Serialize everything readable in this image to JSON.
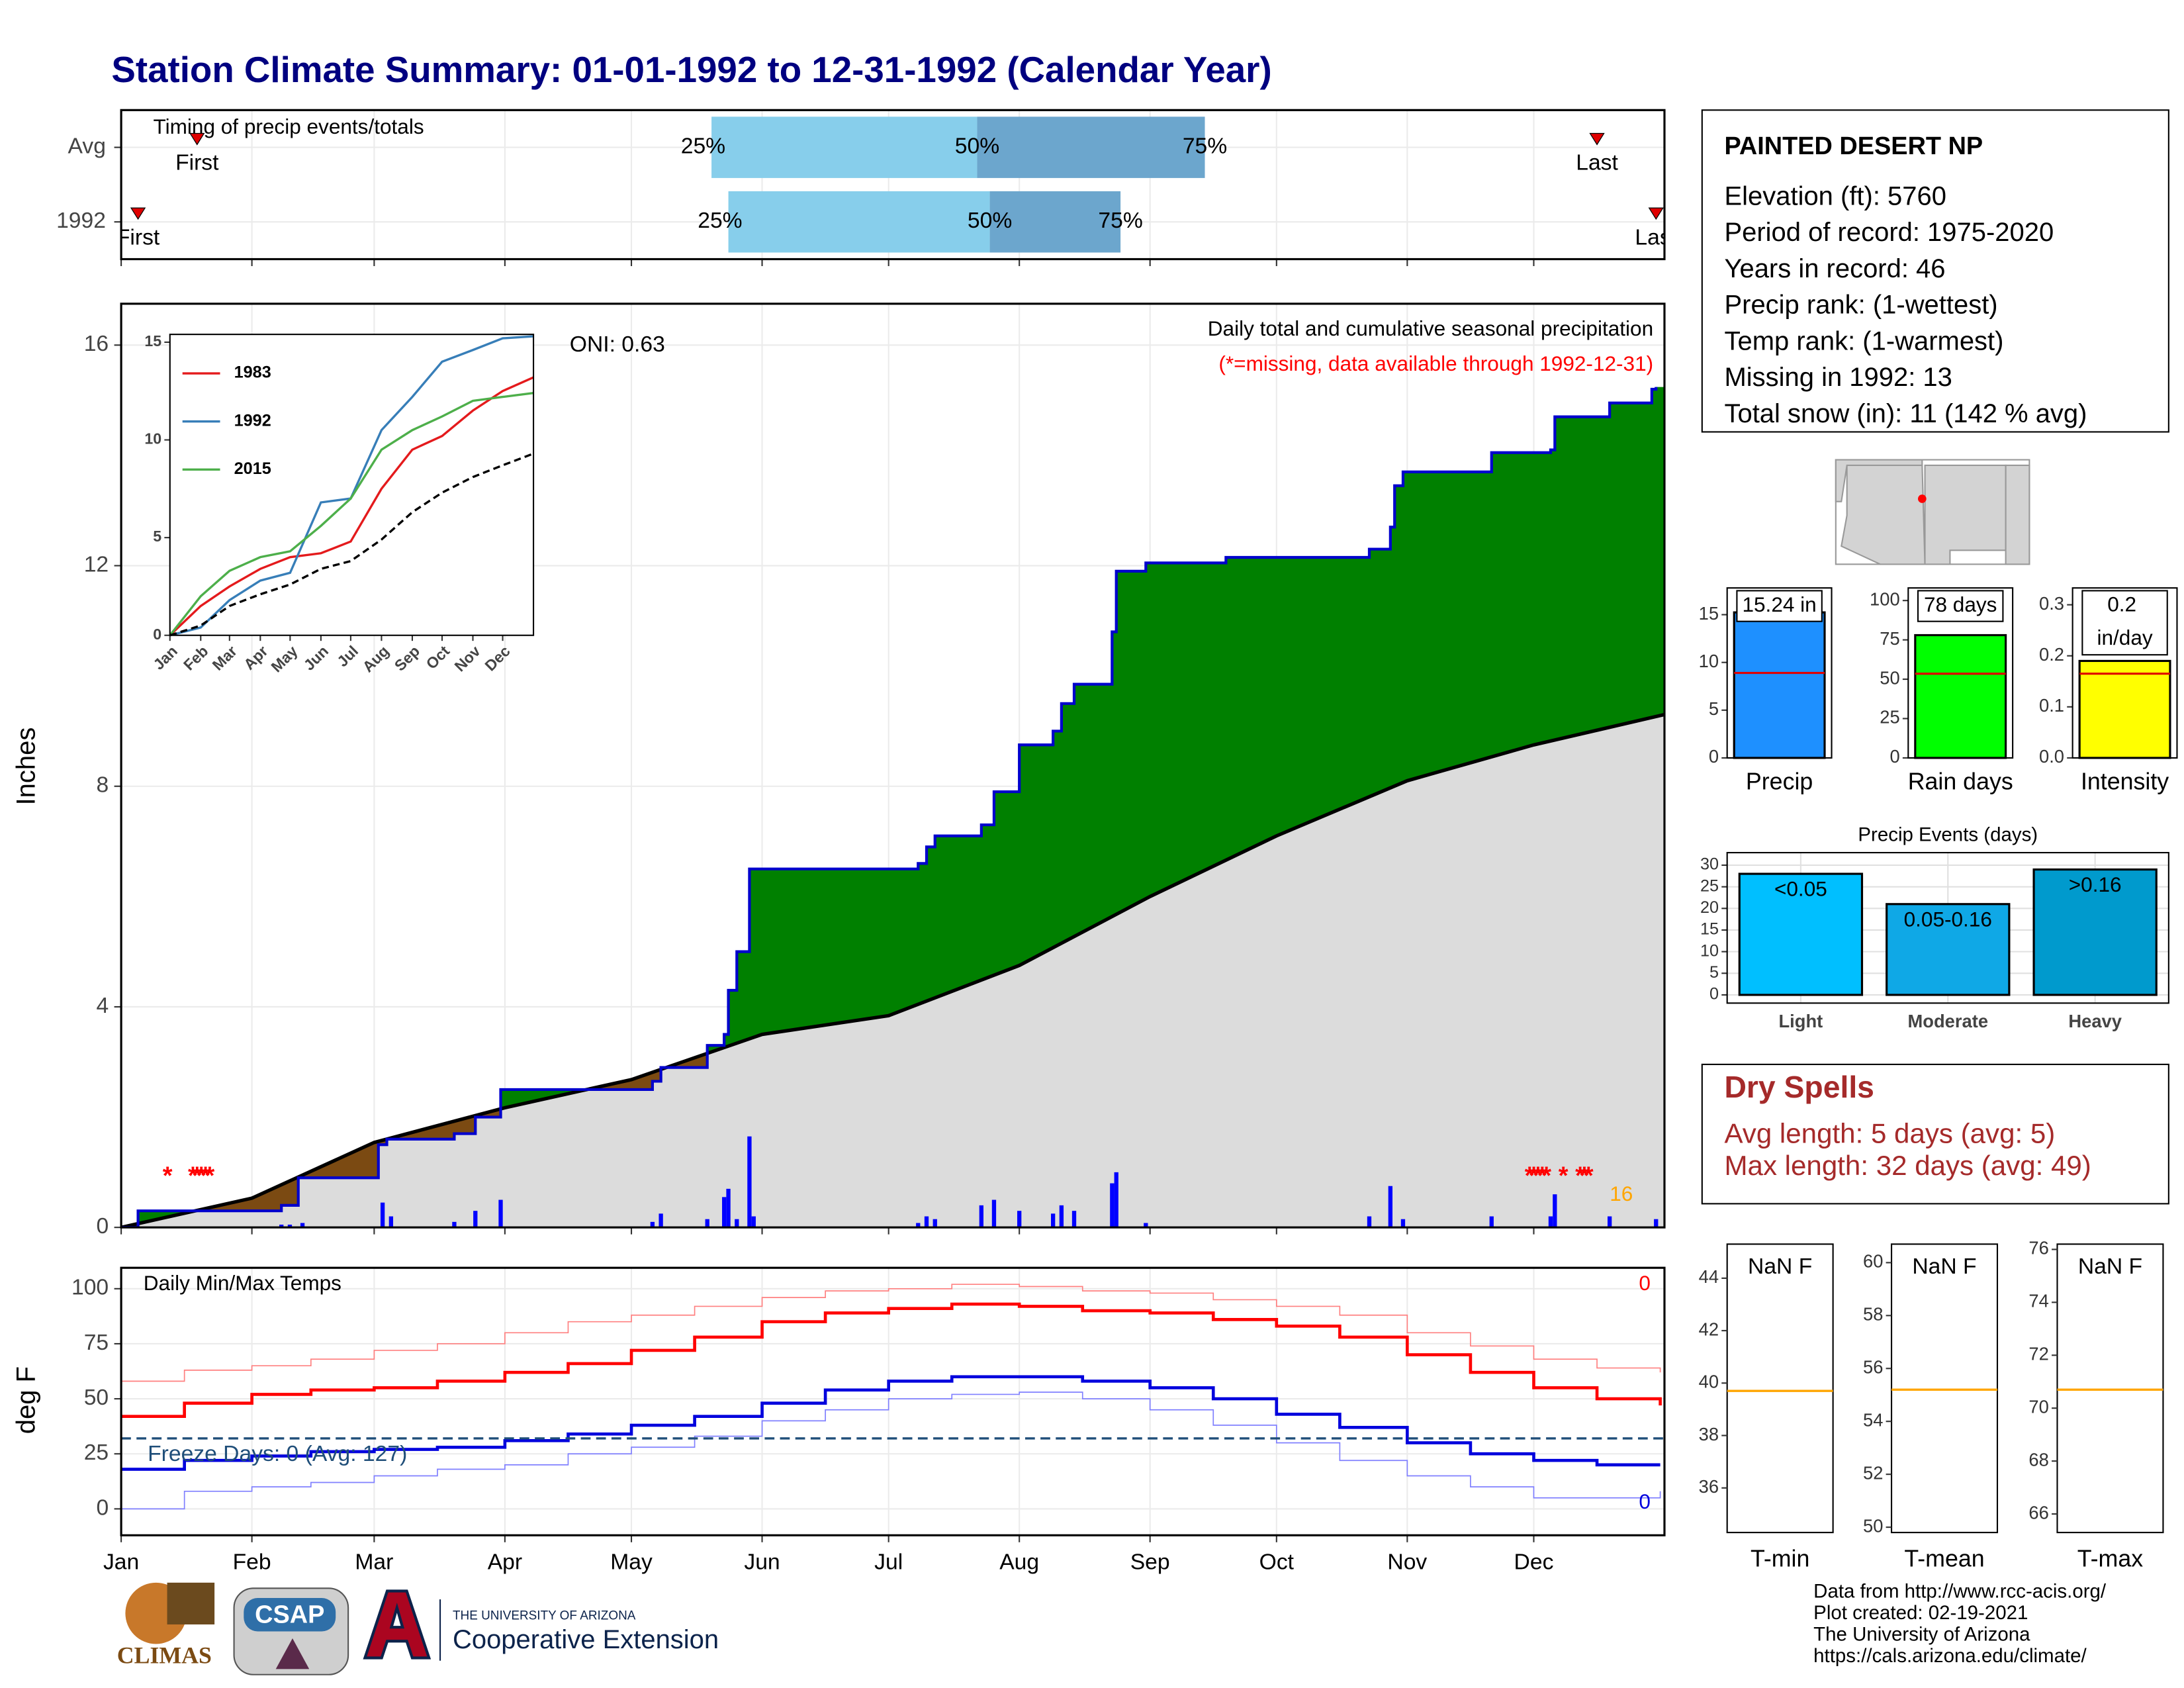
{
  "title": "Station Climate Summary: 01-01-1992 to 12-31-1992 (Calendar Year)",
  "time_axis": {
    "xlim": [
      0,
      366
    ],
    "xticks": [
      {
        "value": 0,
        "label": "Jan"
      },
      {
        "value": 31,
        "label": "Feb"
      },
      {
        "value": 60,
        "label": "Mar"
      },
      {
        "value": 91,
        "label": "Apr"
      },
      {
        "value": 121,
        "label": "May"
      },
      {
        "value": 152,
        "label": "Jun"
      },
      {
        "value": 182,
        "label": "Jul"
      },
      {
        "value": 213,
        "label": "Aug"
      },
      {
        "value": 244,
        "label": "Sep"
      },
      {
        "value": 274,
        "label": "Oct"
      },
      {
        "value": 305,
        "label": "Nov"
      },
      {
        "value": 335,
        "label": "Dec"
      }
    ]
  },
  "station": {
    "name": "PAINTED DESERT NP",
    "lines": [
      "Elevation (ft): 5760",
      "Period of record: 1975-2020",
      "Years in record: 46",
      "Precip rank:  (1-wettest)",
      "Temp rank:  (1-warmest)",
      "Missing in 1992: 13",
      "Total snow (in): 11 (142 % avg)"
    ]
  },
  "dry_spells": {
    "title": "Dry Spells",
    "lines": [
      "Avg length: 5 days (avg: 5)",
      "Max length: 32 days (avg: 49)"
    ]
  },
  "credits": [
    "Data from http://www.rcc-acis.org/",
    "Plot created: 02-19-2021",
    "The University of Arizona",
    "https://cals.arizona.edu/climate/"
  ],
  "logos": {
    "climas": "CLIMAS",
    "csap": "CSAP",
    "ua": "THE UNIVERSITY OF ARIZONA",
    "coop": "Cooperative Extension"
  },
  "chart_data": [
    {
      "type": "timing",
      "title": "Timing of precip events/totals",
      "labels": {
        "first": "First",
        "last": "Last",
        "q25": "25%",
        "q50": "50%",
        "q75": "75%"
      },
      "colors": {
        "lower": "#87ceeb",
        "upper": "#6ca6cd",
        "marker": "#e00000"
      },
      "rows": [
        {
          "name": "Avg",
          "first": 18,
          "q25": 140,
          "q50": 203,
          "q75": 257,
          "last": 350
        },
        {
          "name": "1992",
          "first": 4,
          "q25": 144,
          "q50": 206,
          "q75": 237,
          "last": 364
        }
      ]
    },
    {
      "type": "cumulative",
      "ylabel": "Inches",
      "ylim": [
        0,
        16.75
      ],
      "yticks": [
        0,
        4,
        8,
        12,
        16
      ],
      "grid": true,
      "annotation": "Daily total and cumulative seasonal precipitation",
      "missing_note": "(*=missing, data available through 1992-12-31)",
      "oni": "ONI: 0.63",
      "count_label": "16",
      "colors": {
        "above": "#008000",
        "below": "#7b4a12",
        "average_fill": "#dcdcdc",
        "line": "#0000cd",
        "average_line": "#000000",
        "bars": "#0000ff",
        "missing": "#ff0000",
        "count": "#ffa500"
      },
      "cumulative": {
        "x": [
          0,
          4,
          38,
          42,
          61,
          63,
          79,
          84,
          90,
          126,
          128,
          139,
          143,
          144,
          146,
          149,
          189,
          191,
          193,
          204,
          207,
          213,
          221,
          223,
          226,
          235,
          236,
          243,
          262,
          296,
          301,
          302,
          304,
          325,
          339,
          340,
          353,
          363,
          364
        ],
        "values": [
          0,
          0.3,
          0.4,
          0.9,
          1.5,
          1.6,
          1.7,
          2.0,
          2.5,
          2.65,
          2.9,
          3.3,
          3.5,
          4.3,
          5.0,
          6.5,
          6.6,
          6.9,
          7.1,
          7.3,
          7.9,
          8.75,
          9.0,
          9.5,
          9.85,
          10.8,
          11.9,
          12.05,
          12.15,
          12.3,
          12.7,
          13.45,
          13.7,
          14.05,
          14.1,
          14.7,
          14.95,
          15.2,
          15.24
        ]
      },
      "average": {
        "x": [
          0,
          31,
          60,
          91,
          121,
          152,
          182,
          213,
          244,
          274,
          305,
          335,
          366
        ],
        "values": [
          0,
          0.53,
          1.54,
          2.17,
          2.68,
          3.5,
          3.84,
          4.75,
          6.0,
          7.1,
          8.1,
          8.75,
          9.3
        ]
      },
      "daily": {
        "x": [
          38,
          40,
          43,
          62,
          64,
          79,
          84,
          90,
          126,
          128,
          139,
          143,
          144,
          146,
          149,
          150,
          189,
          191,
          193,
          204,
          207,
          213,
          221,
          223,
          226,
          235,
          236,
          243,
          296,
          301,
          304,
          325,
          339,
          340,
          353,
          364
        ],
        "values": [
          0.05,
          0.05,
          0.08,
          0.45,
          0.2,
          0.1,
          0.3,
          0.5,
          0.1,
          0.25,
          0.15,
          0.55,
          0.7,
          0.15,
          1.65,
          0.2,
          0.08,
          0.2,
          0.15,
          0.4,
          0.5,
          0.3,
          0.25,
          0.4,
          0.3,
          0.8,
          1.0,
          0.08,
          0.2,
          0.75,
          0.15,
          0.2,
          0.2,
          0.6,
          0.2,
          0.15
        ]
      },
      "missing": {
        "marker": "*",
        "x": [
          11,
          17,
          18,
          19,
          20,
          21,
          334,
          335,
          336,
          337,
          338,
          342,
          346,
          347,
          348
        ]
      }
    },
    {
      "type": "line",
      "ylim": [
        0,
        15.4
      ],
      "yticks": [
        0,
        5,
        10,
        15
      ],
      "x": [
        0,
        31,
        60,
        91,
        121,
        152,
        182,
        213,
        244,
        274,
        305,
        335,
        366
      ],
      "series": [
        {
          "name": "1983",
          "color": "#e41a1c",
          "values": [
            0,
            1.5,
            2.5,
            3.4,
            4.0,
            4.2,
            4.8,
            7.5,
            9.5,
            10.2,
            11.5,
            12.5,
            13.2
          ]
        },
        {
          "name": "1992",
          "color": "#377eb8",
          "values": [
            0,
            0.4,
            1.8,
            2.8,
            3.2,
            6.8,
            7.0,
            10.5,
            12.2,
            14.0,
            14.6,
            15.2,
            15.3
          ]
        },
        {
          "name": "2015",
          "color": "#4daf4a",
          "values": [
            0,
            2.0,
            3.3,
            4.0,
            4.3,
            5.6,
            7.0,
            9.5,
            10.5,
            11.2,
            12.0,
            12.2,
            12.4
          ]
        },
        {
          "color": "#000000",
          "style": "dashed",
          "values": [
            0,
            0.5,
            1.5,
            2.1,
            2.6,
            3.4,
            3.8,
            4.9,
            6.3,
            7.3,
            8.1,
            8.7,
            9.3
          ]
        }
      ]
    },
    {
      "type": "summary_bars",
      "average_color": "#e00000",
      "panels": [
        {
          "label": "Precip",
          "value": 15.24,
          "value_label": "15.24 in",
          "average": 8.9,
          "color": "#1e90ff",
          "ylim": [
            0,
            17.8
          ],
          "yticks": [
            0,
            5,
            10,
            15
          ]
        },
        {
          "label": "Rain days",
          "value": 78,
          "value_label": "78 days",
          "average": 53.5,
          "color": "#00ff00",
          "ylim": [
            0,
            108
          ],
          "yticks": [
            0,
            25,
            50,
            75,
            100
          ]
        },
        {
          "label": "Intensity",
          "value": 0.19,
          "value_label": "0.2 in/day",
          "average": 0.165,
          "color": "#ffff00",
          "ylim": [
            0,
            0.333
          ],
          "yticks": [
            {
              "value": 0,
              "label": "0.0"
            },
            0.1,
            0.2,
            0.3
          ]
        }
      ]
    },
    {
      "type": "bar",
      "title": "Precip Events (days)",
      "categories": [
        "Light",
        "Moderate",
        "Heavy"
      ],
      "values": [
        28,
        21,
        29
      ],
      "bar_labels": [
        "<0.05",
        "0.05-0.16",
        ">0.16"
      ],
      "colors": [
        "#00bfff",
        "#0fa8e6",
        "#009acd"
      ],
      "ylim": [
        -1.9,
        32.9
      ],
      "yticks": [
        0,
        5,
        10,
        15,
        20,
        25,
        30
      ],
      "grid": true
    },
    {
      "type": "temperature",
      "title": "Daily Min/Max Temps",
      "ylabel": "deg F",
      "ylim": [
        -12,
        109.5
      ],
      "yticks": [
        0,
        25,
        50,
        75,
        100
      ],
      "grid": true,
      "x": [
        0,
        15,
        31,
        45,
        60,
        75,
        91,
        106,
        121,
        136,
        152,
        167,
        182,
        197,
        213,
        228,
        244,
        259,
        274,
        289,
        305,
        320,
        335,
        350,
        365
      ],
      "series": [
        {
          "color": "#ff8080",
          "line_width": 0.8,
          "values": [
            58,
            63,
            65,
            68,
            72,
            75,
            80,
            85,
            88,
            92,
            96,
            99,
            100,
            102,
            101,
            99,
            98,
            95,
            92,
            88,
            80,
            74,
            68,
            64,
            62
          ]
        },
        {
          "color": "#ff0000",
          "line_width": 2.2,
          "values": [
            42,
            48,
            52,
            54,
            55,
            58,
            62,
            66,
            72,
            78,
            85,
            89,
            91,
            93,
            92,
            90,
            89,
            86,
            83,
            78,
            70,
            62,
            55,
            50,
            47
          ]
        },
        {
          "color": "#8080ff",
          "line_width": 0.8,
          "values": [
            0,
            8,
            10,
            12,
            15,
            18,
            20,
            25,
            28,
            33,
            40,
            45,
            50,
            52,
            53,
            50,
            45,
            38,
            30,
            22,
            15,
            10,
            5,
            5,
            8
          ]
        },
        {
          "color": "#0000dd",
          "line_width": 2.2,
          "values": [
            18,
            22,
            24,
            26,
            27,
            28,
            31,
            34,
            38,
            42,
            48,
            54,
            58,
            60,
            60,
            58,
            55,
            50,
            43,
            37,
            30,
            25,
            22,
            20,
            20
          ]
        }
      ],
      "freeze": {
        "value": 32,
        "label": "Freeze Days: 0 (Avg: 127)",
        "color": "#1f4e79"
      },
      "max_count": {
        "label": "0",
        "color": "#ff0000"
      },
      "min_count": {
        "label": "0",
        "color": "#0000dd"
      }
    },
    {
      "type": "gauge",
      "average_color": "#ffa500",
      "panels": [
        {
          "label": "T-min",
          "value_label": "NaN F",
          "average": 39.7,
          "ylim": [
            34.3,
            45.3
          ],
          "yticks": [
            36,
            38,
            40,
            42,
            44
          ]
        },
        {
          "label": "T-mean",
          "value_label": "NaN F",
          "average": 55.2,
          "ylim": [
            49.8,
            60.7
          ],
          "yticks": [
            50,
            52,
            54,
            56,
            58,
            60
          ]
        },
        {
          "label": "T-max",
          "value_label": "NaN F",
          "average": 70.7,
          "ylim": [
            65.3,
            76.2
          ],
          "yticks": [
            66,
            68,
            70,
            72,
            74,
            76
          ]
        }
      ]
    }
  ]
}
